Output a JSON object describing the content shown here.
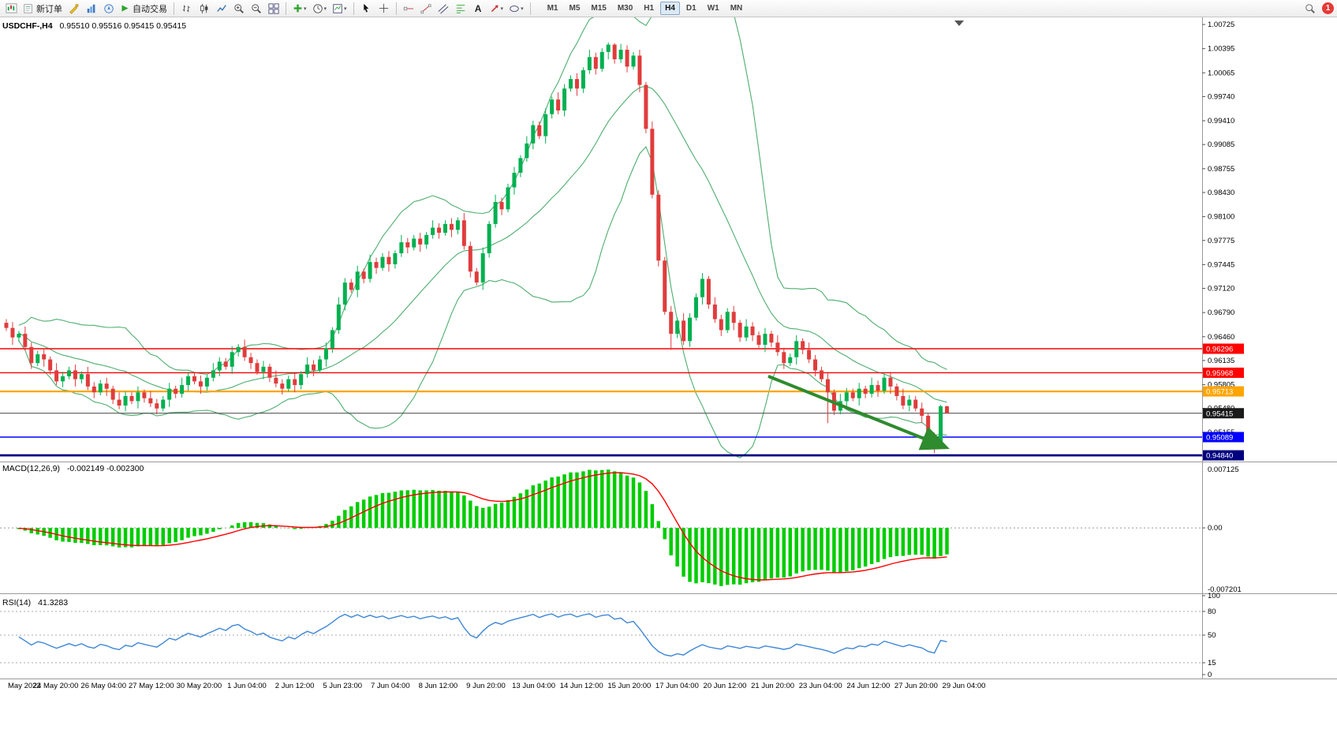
{
  "toolbar": {
    "new_order_label": "新订单",
    "autotrading_label": "自动交易",
    "timeframes": [
      "M1",
      "M5",
      "M15",
      "M30",
      "H1",
      "H4",
      "D1",
      "W1",
      "MN"
    ],
    "active_timeframe": "H4",
    "notification_count": "1"
  },
  "chart": {
    "symbol_info": "USDCHF-,H4",
    "ohlc": "0.95510 0.95516 0.95415 0.95415",
    "y_axis_labels": [
      "1.00725",
      "1.00395",
      "1.00065",
      "0.99740",
      "0.99410",
      "0.99085",
      "0.98755",
      "0.98430",
      "0.98100",
      "0.97775",
      "0.97445",
      "0.97120",
      "0.96790",
      "0.96460",
      "0.96135",
      "0.95805",
      "0.95480",
      "0.95155",
      "0.94830"
    ],
    "time_axis_labels": [
      "May 2022",
      "24 May 20:00",
      "26 May 04:00",
      "27 May 12:00",
      "30 May 20:00",
      "1 Jun 04:00",
      "2 Jun 12:00",
      "5 Jun 23:00",
      "7 Jun 04:00",
      "8 Jun 12:00",
      "9 Jun 20:00",
      "13 Jun 04:00",
      "14 Jun 12:00",
      "15 Jun 20:00",
      "17 Jun 04:00",
      "20 Jun 12:00",
      "21 Jun 20:00",
      "23 Jun 04:00",
      "24 Jun 12:00",
      "27 Jun 20:00",
      "29 Jun 04:00"
    ],
    "price_lines": [
      {
        "value": 0.96296,
        "label": "0.96296",
        "color": "#FF0000",
        "width": 1.4
      },
      {
        "value": 0.95968,
        "label": "0.95968",
        "color": "#FF0000",
        "width": 1.4
      },
      {
        "value": 0.95713,
        "label": "0.95713",
        "color": "#FFA500",
        "width": 2.2
      },
      {
        "value": 0.95089,
        "label": "0.95089",
        "color": "#0000FF",
        "width": 1.6
      },
      {
        "value": 0.9484,
        "label": "0.94840",
        "color": "#000080",
        "width": 2.8
      }
    ],
    "current_price": {
      "value": 0.95415,
      "label": "0.95415",
      "color": "#1a1a1a"
    },
    "arrow": {
      "i1": 121.5,
      "p1": 0.9592,
      "i2": 149.5,
      "p2": 0.9496,
      "width": 4
    }
  },
  "colors": {
    "bull": "#00B050",
    "bear": "#E03C3C",
    "bollinger": "#4DAE6E",
    "macd_histogram": "#00CC00",
    "macd_signal": "#FF0000",
    "rsi": "#3E86D6",
    "arrow": "#2E8B2E",
    "badge": "#E53935"
  },
  "chart_data": {
    "type": "candlestick",
    "symbol": "USDCHF-",
    "timeframe": "H4",
    "candles": [
      [
        0.9665,
        0.967,
        0.9654,
        0.9658
      ],
      [
        0.9658,
        0.9666,
        0.9635,
        0.9645
      ],
      [
        0.9645,
        0.9654,
        0.9639,
        0.965
      ],
      [
        0.965,
        0.966,
        0.9627,
        0.9632
      ],
      [
        0.9632,
        0.9638,
        0.9602,
        0.961
      ],
      [
        0.961,
        0.9627,
        0.9606,
        0.9622
      ],
      [
        0.9622,
        0.963,
        0.9605,
        0.9615
      ],
      [
        0.9615,
        0.9619,
        0.9594,
        0.96
      ],
      [
        0.96,
        0.961,
        0.958,
        0.9585
      ],
      [
        0.9585,
        0.9598,
        0.9577,
        0.9592
      ],
      [
        0.9592,
        0.9605,
        0.9588,
        0.96
      ],
      [
        0.96,
        0.9608,
        0.9578,
        0.9588
      ],
      [
        0.9588,
        0.9599,
        0.9582,
        0.9595
      ],
      [
        0.9595,
        0.9605,
        0.9573,
        0.9578
      ],
      [
        0.9578,
        0.9584,
        0.9562,
        0.957
      ],
      [
        0.957,
        0.9587,
        0.9566,
        0.9582
      ],
      [
        0.9582,
        0.959,
        0.9565,
        0.9575
      ],
      [
        0.9575,
        0.9579,
        0.9554,
        0.956
      ],
      [
        0.956,
        0.957,
        0.9547,
        0.9552
      ],
      [
        0.9552,
        0.9571,
        0.9544,
        0.9565
      ],
      [
        0.9565,
        0.957,
        0.9554,
        0.9558
      ],
      [
        0.9558,
        0.9578,
        0.9548,
        0.957
      ],
      [
        0.957,
        0.9574,
        0.9556,
        0.9562
      ],
      [
        0.9562,
        0.9572,
        0.955,
        0.9555
      ],
      [
        0.9555,
        0.9561,
        0.954,
        0.9548
      ],
      [
        0.9548,
        0.9565,
        0.9544,
        0.956
      ],
      [
        0.956,
        0.9583,
        0.955,
        0.9575
      ],
      [
        0.9575,
        0.9579,
        0.9562,
        0.9568
      ],
      [
        0.9568,
        0.959,
        0.9563,
        0.958
      ],
      [
        0.958,
        0.9598,
        0.9572,
        0.9592
      ],
      [
        0.9592,
        0.9597,
        0.9581,
        0.9585
      ],
      [
        0.9585,
        0.9593,
        0.9568,
        0.9578
      ],
      [
        0.9578,
        0.9594,
        0.9572,
        0.959
      ],
      [
        0.959,
        0.961,
        0.9585,
        0.96
      ],
      [
        0.96,
        0.9618,
        0.9592,
        0.9612
      ],
      [
        0.9612,
        0.9617,
        0.9601,
        0.9605
      ],
      [
        0.9605,
        0.9633,
        0.9595,
        0.9625
      ],
      [
        0.9625,
        0.9636,
        0.9619,
        0.9632
      ],
      [
        0.9632,
        0.9642,
        0.9613,
        0.9618
      ],
      [
        0.9618,
        0.9624,
        0.9602,
        0.961
      ],
      [
        0.961,
        0.9615,
        0.9594,
        0.9598
      ],
      [
        0.9598,
        0.9613,
        0.9588,
        0.9605
      ],
      [
        0.9605,
        0.9609,
        0.9584,
        0.959
      ],
      [
        0.959,
        0.96,
        0.9577,
        0.9582
      ],
      [
        0.9582,
        0.9588,
        0.9567,
        0.9575
      ],
      [
        0.9575,
        0.9593,
        0.9571,
        0.9588
      ],
      [
        0.9588,
        0.9596,
        0.957,
        0.958
      ],
      [
        0.958,
        0.9599,
        0.9574,
        0.9595
      ],
      [
        0.9595,
        0.9618,
        0.959,
        0.9608
      ],
      [
        0.9608,
        0.9614,
        0.9592,
        0.96
      ],
      [
        0.96,
        0.962,
        0.9596,
        0.9615
      ],
      [
        0.9615,
        0.9638,
        0.9605,
        0.963
      ],
      [
        0.963,
        0.9659,
        0.9624,
        0.9655
      ],
      [
        0.9655,
        0.97,
        0.965,
        0.969
      ],
      [
        0.969,
        0.9726,
        0.9682,
        0.972
      ],
      [
        0.972,
        0.9725,
        0.9706,
        0.971
      ],
      [
        0.971,
        0.9743,
        0.97,
        0.9735
      ],
      [
        0.9735,
        0.9739,
        0.9719,
        0.9725
      ],
      [
        0.9725,
        0.9758,
        0.972,
        0.9748
      ],
      [
        0.9748,
        0.9754,
        0.9732,
        0.974
      ],
      [
        0.974,
        0.976,
        0.9736,
        0.9755
      ],
      [
        0.9755,
        0.9763,
        0.9735,
        0.9745
      ],
      [
        0.9745,
        0.9764,
        0.9739,
        0.976
      ],
      [
        0.976,
        0.9785,
        0.9755,
        0.9775
      ],
      [
        0.9775,
        0.9781,
        0.976,
        0.9768
      ],
      [
        0.9768,
        0.9785,
        0.9764,
        0.978
      ],
      [
        0.978,
        0.9788,
        0.9762,
        0.9772
      ],
      [
        0.9772,
        0.9789,
        0.9766,
        0.9785
      ],
      [
        0.9785,
        0.9805,
        0.978,
        0.9795
      ],
      [
        0.9795,
        0.9801,
        0.978,
        0.9788
      ],
      [
        0.9788,
        0.9805,
        0.9784,
        0.98
      ],
      [
        0.98,
        0.9808,
        0.9782,
        0.9792
      ],
      [
        0.9792,
        0.9809,
        0.9786,
        0.9805
      ],
      [
        0.9805,
        0.9815,
        0.9765,
        0.977
      ],
      [
        0.977,
        0.9776,
        0.9727,
        0.9735
      ],
      [
        0.9735,
        0.974,
        0.9716,
        0.972
      ],
      [
        0.972,
        0.9768,
        0.971,
        0.976
      ],
      [
        0.976,
        0.9804,
        0.9754,
        0.98
      ],
      [
        0.98,
        0.984,
        0.9795,
        0.983
      ],
      [
        0.983,
        0.9836,
        0.9812,
        0.982
      ],
      [
        0.982,
        0.9855,
        0.9816,
        0.985
      ],
      [
        0.985,
        0.9878,
        0.984,
        0.987
      ],
      [
        0.987,
        0.9894,
        0.9864,
        0.989
      ],
      [
        0.989,
        0.992,
        0.9885,
        0.991
      ],
      [
        0.991,
        0.9941,
        0.9902,
        0.9935
      ],
      [
        0.9935,
        0.994,
        0.9916,
        0.992
      ],
      [
        0.992,
        0.9958,
        0.991,
        0.995
      ],
      [
        0.995,
        0.9974,
        0.9944,
        0.997
      ],
      [
        0.997,
        0.998,
        0.995,
        0.9955
      ],
      [
        0.9955,
        0.9991,
        0.9947,
        0.9985
      ],
      [
        0.9985,
        1.0003,
        0.9981,
        0.9998
      ],
      [
        0.9998,
        1.0006,
        0.9975,
        0.9985
      ],
      [
        0.9985,
        1.0014,
        0.9979,
        1.001
      ],
      [
        1.001,
        1.0038,
        1.0005,
        1.0028
      ],
      [
        1.0028,
        1.0034,
        1.0004,
        1.0012
      ],
      [
        1.0012,
        1.004,
        1.0008,
        1.0035
      ],
      [
        1.0035,
        1.0048,
        1.0025,
        1.0045
      ],
      [
        1.0045,
        1.0047,
        1.0019,
        1.0025
      ],
      [
        1.0025,
        1.0046,
        1.002,
        1.0038
      ],
      [
        1.0038,
        1.0044,
        1.0007,
        1.0015
      ],
      [
        1.0015,
        1.0035,
        1.0011,
        1.003
      ],
      [
        1.003,
        1.0038,
        0.998,
        0.999
      ],
      [
        0.999,
        0.9994,
        0.9924,
        0.993
      ],
      [
        0.993,
        0.994,
        0.9835,
        0.984
      ],
      [
        0.984,
        0.9846,
        0.9742,
        0.975
      ],
      [
        0.975,
        0.9755,
        0.9676,
        0.968
      ],
      [
        0.968,
        0.9688,
        0.9628,
        0.965
      ],
      [
        0.965,
        0.9672,
        0.9644,
        0.9668
      ],
      [
        0.9668,
        0.9678,
        0.9635,
        0.964
      ],
      [
        0.964,
        0.9678,
        0.9632,
        0.9672
      ],
      [
        0.9672,
        0.9705,
        0.9668,
        0.97
      ],
      [
        0.97,
        0.9733,
        0.969,
        0.9725
      ],
      [
        0.9725,
        0.9729,
        0.9684,
        0.969
      ],
      [
        0.969,
        0.97,
        0.9665,
        0.967
      ],
      [
        0.967,
        0.9676,
        0.9647,
        0.9655
      ],
      [
        0.9655,
        0.9685,
        0.9651,
        0.968
      ],
      [
        0.968,
        0.9688,
        0.9655,
        0.9665
      ],
      [
        0.9665,
        0.9669,
        0.9639,
        0.9645
      ],
      [
        0.9645,
        0.967,
        0.964,
        0.966
      ],
      [
        0.966,
        0.9666,
        0.964,
        0.9648
      ],
      [
        0.9648,
        0.9653,
        0.9631,
        0.9635
      ],
      [
        0.9635,
        0.9658,
        0.9625,
        0.965
      ],
      [
        0.965,
        0.9654,
        0.9632,
        0.9638
      ],
      [
        0.9638,
        0.9648,
        0.962,
        0.9625
      ],
      [
        0.9625,
        0.9631,
        0.9602,
        0.961
      ],
      [
        0.961,
        0.9623,
        0.9606,
        0.9618
      ],
      [
        0.9618,
        0.9648,
        0.9608,
        0.964
      ],
      [
        0.964,
        0.9644,
        0.9622,
        0.9628
      ],
      [
        0.9628,
        0.9638,
        0.961,
        0.9615
      ],
      [
        0.9615,
        0.9621,
        0.9592,
        0.96
      ],
      [
        0.96,
        0.9605,
        0.9584,
        0.9588
      ],
      [
        0.9588,
        0.9596,
        0.9528,
        0.957
      ],
      [
        0.957,
        0.9574,
        0.9539,
        0.9545
      ],
      [
        0.9545,
        0.9568,
        0.954,
        0.9558
      ],
      [
        0.9558,
        0.9576,
        0.955,
        0.957
      ],
      [
        0.957,
        0.9575,
        0.9558,
        0.9562
      ],
      [
        0.9562,
        0.9583,
        0.9552,
        0.9575
      ],
      [
        0.9575,
        0.9579,
        0.9562,
        0.9568
      ],
      [
        0.9568,
        0.959,
        0.9563,
        0.958
      ],
      [
        0.958,
        0.9586,
        0.9564,
        0.9572
      ],
      [
        0.9572,
        0.9595,
        0.9568,
        0.959
      ],
      [
        0.959,
        0.9598,
        0.9568,
        0.9578
      ],
      [
        0.9578,
        0.9582,
        0.9559,
        0.9565
      ],
      [
        0.9565,
        0.9575,
        0.9547,
        0.9552
      ],
      [
        0.9552,
        0.9566,
        0.9544,
        0.956
      ],
      [
        0.956,
        0.9565,
        0.9544,
        0.9548
      ],
      [
        0.9548,
        0.9556,
        0.9528,
        0.9538
      ],
      [
        0.9538,
        0.9542,
        0.9504,
        0.951
      ],
      [
        0.951,
        0.9515,
        0.9487,
        0.9495
      ],
      [
        0.9495,
        0.9553,
        0.9493,
        0.9551
      ],
      [
        0.9551,
        0.95516,
        0.95415,
        0.95415
      ]
    ],
    "indicators": {
      "bollinger": {
        "period": 20,
        "deviation": 2
      },
      "macd": {
        "label": "MACD(12,26,9)",
        "values_text": "-0.002149 -0.002300",
        "fast": 12,
        "slow": 26,
        "signal": 9,
        "scale_max": "0.007125",
        "scale_zero": "0.00",
        "scale_min": "-0.007201"
      },
      "rsi": {
        "label": "RSI(14)",
        "value_text": "41.3283",
        "period": 14,
        "levels": [
          80,
          50,
          15
        ],
        "scale_labels": [
          "100",
          "80",
          "50",
          "15",
          "0"
        ]
      }
    }
  }
}
